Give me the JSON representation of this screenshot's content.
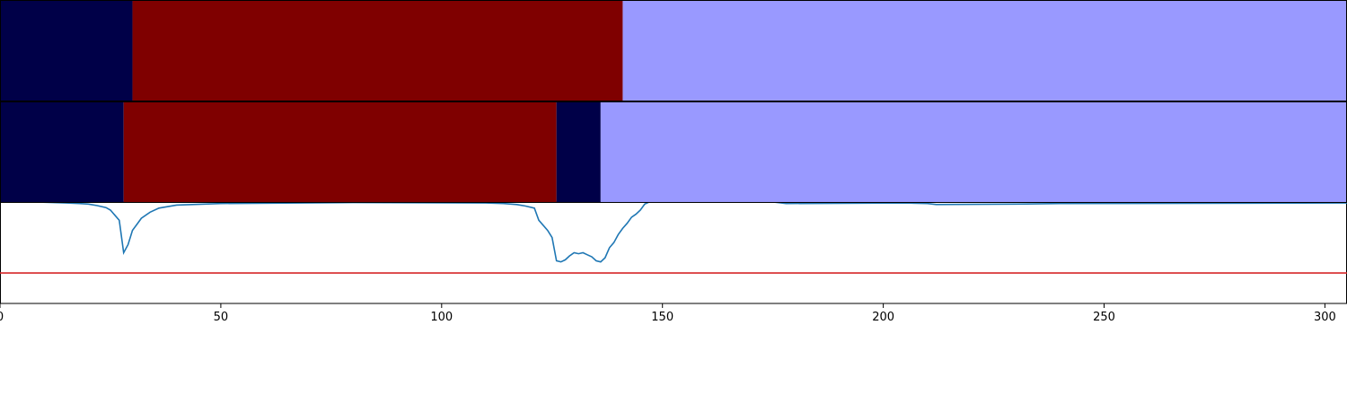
{
  "chart_data": {
    "type": "timeline-segmentation",
    "xlim": [
      0,
      305
    ],
    "x_ticks": [
      0,
      50,
      100,
      150,
      200,
      250,
      300
    ],
    "x_tick_labels": [
      "0",
      "50",
      "100",
      "150",
      "200",
      "250",
      "300"
    ],
    "colors": {
      "class_0": "#000048",
      "class_1": "#7f0000",
      "class_2": "#9999ff",
      "signal_line": "#1f77b4",
      "threshold_line": "#d62728"
    },
    "rows": [
      {
        "segments": [
          {
            "start": 0,
            "end": 30,
            "class": "class_0"
          },
          {
            "start": 30,
            "end": 141,
            "class": "class_1"
          },
          {
            "start": 141,
            "end": 305,
            "class": "class_2"
          }
        ]
      },
      {
        "segments": [
          {
            "start": 0,
            "end": 28,
            "class": "class_0"
          },
          {
            "start": 28,
            "end": 126,
            "class": "class_1"
          },
          {
            "start": 126,
            "end": 136,
            "class": "class_0"
          },
          {
            "start": 136,
            "end": 305,
            "class": "class_2"
          }
        ]
      }
    ],
    "signal": {
      "ylim": [
        0,
        1
      ],
      "threshold": 0.3,
      "points": [
        [
          0,
          1.0
        ],
        [
          8,
          1.0
        ],
        [
          12,
          0.995
        ],
        [
          15,
          0.99
        ],
        [
          18,
          0.985
        ],
        [
          20,
          0.98
        ],
        [
          22,
          0.965
        ],
        [
          24,
          0.945
        ],
        [
          25,
          0.92
        ],
        [
          26,
          0.87
        ],
        [
          27,
          0.82
        ],
        [
          28,
          0.5
        ],
        [
          29,
          0.58
        ],
        [
          30,
          0.72
        ],
        [
          31,
          0.78
        ],
        [
          32,
          0.84
        ],
        [
          34,
          0.9
        ],
        [
          36,
          0.94
        ],
        [
          40,
          0.97
        ],
        [
          50,
          0.985
        ],
        [
          80,
          0.995
        ],
        [
          110,
          0.99
        ],
        [
          114,
          0.985
        ],
        [
          117,
          0.975
        ],
        [
          119,
          0.96
        ],
        [
          121,
          0.94
        ],
        [
          122,
          0.82
        ],
        [
          124,
          0.72
        ],
        [
          125,
          0.65
        ],
        [
          126,
          0.42
        ],
        [
          127,
          0.41
        ],
        [
          128,
          0.43
        ],
        [
          129,
          0.47
        ],
        [
          130,
          0.5
        ],
        [
          131,
          0.49
        ],
        [
          132,
          0.5
        ],
        [
          133,
          0.48
        ],
        [
          134,
          0.46
        ],
        [
          135,
          0.42
        ],
        [
          136,
          0.41
        ],
        [
          137,
          0.45
        ],
        [
          138,
          0.55
        ],
        [
          139,
          0.6
        ],
        [
          140,
          0.68
        ],
        [
          141,
          0.74
        ],
        [
          142,
          0.79
        ],
        [
          143,
          0.85
        ],
        [
          144,
          0.88
        ],
        [
          145,
          0.92
        ],
        [
          146,
          0.98
        ],
        [
          147,
          1.0
        ],
        [
          175,
          1.0
        ],
        [
          178,
          0.985
        ],
        [
          205,
          0.99
        ],
        [
          210,
          0.985
        ],
        [
          212,
          0.975
        ],
        [
          230,
          0.98
        ],
        [
          240,
          0.985
        ],
        [
          305,
          0.99
        ]
      ]
    }
  }
}
